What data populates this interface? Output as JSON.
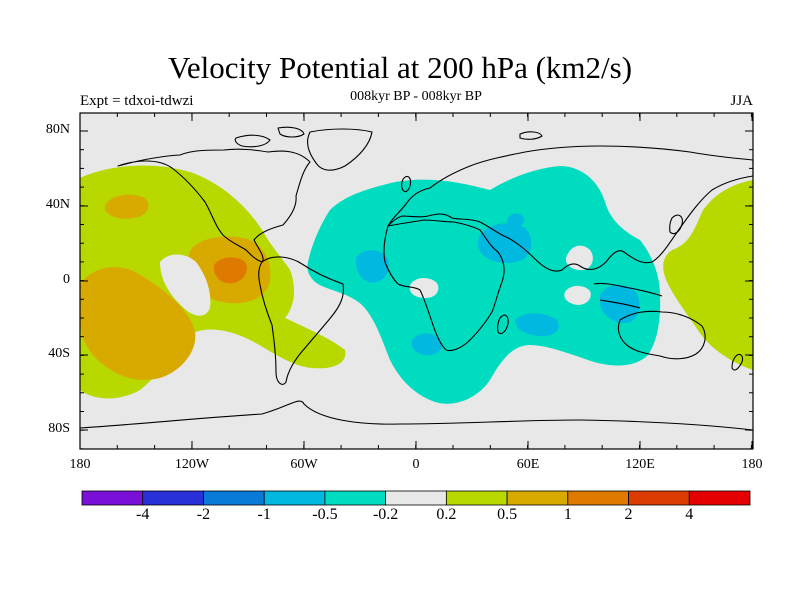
{
  "title": "Velocity Potential at 200 hPa (km2/s)",
  "experiment": "Expt = tdxoi-tdwzi",
  "subtitle": "008kyr BP - 008kyr BP",
  "season": "JJA",
  "lat_ticks": [
    "80N",
    "40N",
    "0",
    "40S",
    "80S"
  ],
  "lon_ticks": [
    "180",
    "120W",
    "60W",
    "0",
    "60E",
    "120E",
    "180"
  ],
  "colorbar": {
    "colors": [
      "#7a10d8",
      "#2830d8",
      "#0a7ad8",
      "#00b8e0",
      "#00dcc0",
      "#e8e8e8",
      "#b8d800",
      "#d8aa00",
      "#de7a00",
      "#dc3c00",
      "#e40000"
    ],
    "labels": [
      "-4",
      "-2",
      "-1",
      "-0.5",
      "-0.2",
      "0.2",
      "0.5",
      "1",
      "2",
      "4"
    ]
  },
  "palette": {
    "ocean_background": "#e8e8e8",
    "pos_low": "#b8d800",
    "pos_mid": "#d8aa00",
    "pos_high": "#de7a00",
    "neg_low": "#00dcc0",
    "neg_mid": "#00b8e0"
  }
}
